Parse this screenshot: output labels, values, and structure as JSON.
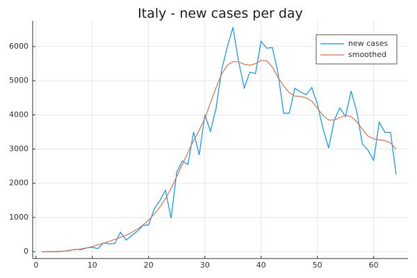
{
  "chart_data": {
    "type": "line",
    "title": "Italy - new cases per day",
    "x": [
      1,
      2,
      3,
      4,
      5,
      6,
      7,
      8,
      9,
      10,
      11,
      12,
      13,
      14,
      15,
      16,
      17,
      18,
      19,
      20,
      21,
      22,
      23,
      24,
      25,
      26,
      27,
      28,
      29,
      30,
      31,
      32,
      33,
      34,
      35,
      36,
      37,
      38,
      39,
      40,
      41,
      42,
      43,
      44,
      45,
      46,
      47,
      48,
      49,
      50,
      51,
      52,
      53,
      54,
      55,
      56,
      57,
      58,
      59,
      60,
      61,
      62,
      63,
      64
    ],
    "series": [
      {
        "name": "new cases",
        "color": "#009af9",
        "values": [
          0,
          0,
          0,
          0,
          20,
          30,
          70,
          60,
          110,
          130,
          90,
          260,
          230,
          240,
          570,
          340,
          470,
          600,
          770,
          780,
          1250,
          1490,
          1800,
          980,
          2320,
          2650,
          2550,
          3500,
          2830,
          4000,
          3520,
          4200,
          5320,
          5990,
          6560,
          5560,
          4790,
          5250,
          5210,
          6150,
          5950,
          5970,
          5230,
          4050,
          4050,
          4780,
          4670,
          4590,
          4800,
          4320,
          3600,
          3030,
          3840,
          4210,
          3950,
          4700,
          4090,
          3150,
          2970,
          2670,
          3790,
          3490,
          3490,
          2260
        ]
      },
      {
        "name": "smoothed",
        "color": "#e26f46",
        "values": [
          0,
          0,
          5,
          10,
          20,
          40,
          60,
          80,
          110,
          150,
          200,
          250,
          300,
          360,
          420,
          480,
          560,
          660,
          780,
          920,
          1100,
          1300,
          1550,
          1850,
          2200,
          2550,
          2900,
          3250,
          3550,
          3900,
          4350,
          4800,
          5200,
          5450,
          5560,
          5550,
          5480,
          5450,
          5500,
          5590,
          5580,
          5400,
          5100,
          4850,
          4650,
          4550,
          4540,
          4500,
          4400,
          4200,
          3980,
          3850,
          3850,
          3920,
          3990,
          3950,
          3800,
          3580,
          3380,
          3300,
          3270,
          3250,
          3180,
          3000
        ]
      }
    ],
    "xlim": [
      -0.6,
      66.1
    ],
    "ylim": [
      -200,
      6750
    ],
    "xticks": [
      0,
      10,
      20,
      30,
      40,
      50,
      60
    ],
    "yticks": [
      0,
      1000,
      2000,
      3000,
      4000,
      5000,
      6000
    ],
    "grid": true,
    "legend": "top-right"
  }
}
